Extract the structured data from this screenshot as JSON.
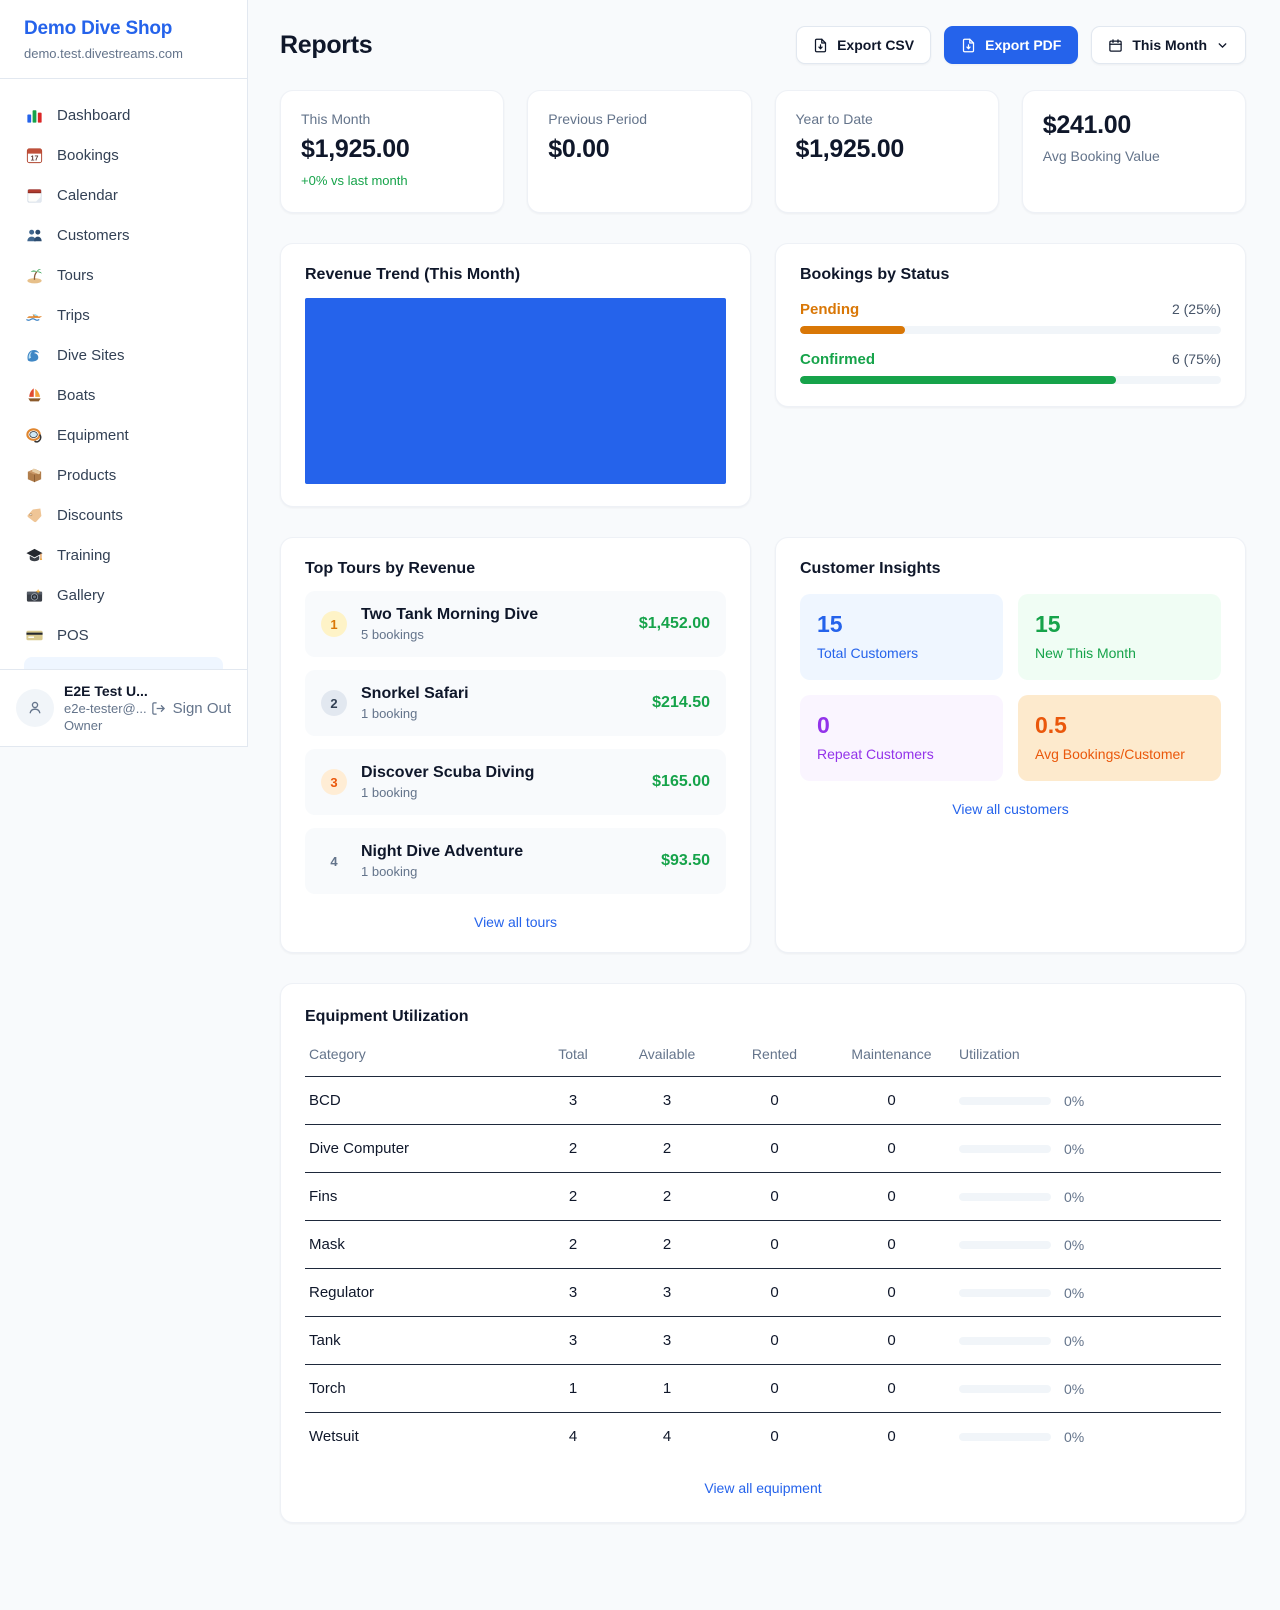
{
  "colors": {
    "accent_blue": "#2563eb",
    "green": "#16a34a",
    "orange_pending": "#d97706",
    "orange_deep": "#ea580c",
    "purple": "#9333ea",
    "text_muted": "#64748b",
    "page_bg": "#f8fafc"
  },
  "sidebar": {
    "title": "Demo Dive Shop",
    "subtitle": "demo.test.divestreams.com",
    "items": [
      {
        "label": "Dashboard",
        "icon": "dashboard-icon"
      },
      {
        "label": "Bookings",
        "icon": "bookings-calendar-icon"
      },
      {
        "label": "Calendar",
        "icon": "calendar-icon"
      },
      {
        "label": "Customers",
        "icon": "customers-icon"
      },
      {
        "label": "Tours",
        "icon": "island-icon"
      },
      {
        "label": "Trips",
        "icon": "speedboat-icon"
      },
      {
        "label": "Dive Sites",
        "icon": "wave-icon"
      },
      {
        "label": "Boats",
        "icon": "sailboat-icon"
      },
      {
        "label": "Equipment",
        "icon": "dive-mask-icon"
      },
      {
        "label": "Products",
        "icon": "package-icon"
      },
      {
        "label": "Discounts",
        "icon": "tag-icon"
      },
      {
        "label": "Training",
        "icon": "graduation-cap-icon"
      },
      {
        "label": "Gallery",
        "icon": "camera-icon"
      },
      {
        "label": "POS",
        "icon": "credit-card-icon"
      }
    ],
    "user": {
      "name": "E2E Test U...",
      "email": "e2e-tester@...",
      "role": "Owner",
      "signout_label": "Sign Out"
    }
  },
  "header": {
    "title": "Reports",
    "export_csv_label": "Export CSV",
    "export_pdf_label": "Export PDF",
    "period_label": "This Month"
  },
  "stats": [
    {
      "label": "This Month",
      "value": "$1,925.00",
      "delta": "+0% vs last month"
    },
    {
      "label": "Previous Period",
      "value": "$0.00"
    },
    {
      "label": "Year to Date",
      "value": "$1,925.00"
    },
    {
      "label": "Avg Booking Value",
      "value": "$241.00"
    }
  ],
  "revenue_trend": {
    "title": "Revenue Trend (This Month)"
  },
  "chart_data": {
    "type": "bar",
    "title": "Revenue Trend (This Month)",
    "note": "single full-width solid bar, no axes or labels visible",
    "series": [
      {
        "name": "Revenue",
        "values": [
          1925.0
        ]
      }
    ],
    "bar_color": "#2563eb"
  },
  "bookings_by_status": {
    "title": "Bookings by Status",
    "rows": [
      {
        "label": "Pending",
        "count_text": "2 (25%)",
        "pct": 25,
        "color": "#d97706"
      },
      {
        "label": "Confirmed",
        "count_text": "6 (75%)",
        "pct": 75,
        "color": "#16a34a"
      }
    ]
  },
  "top_tours": {
    "title": "Top Tours by Revenue",
    "rows": [
      {
        "rank": "1",
        "name": "Two Tank Morning Dive",
        "bookings": "5 bookings",
        "revenue": "$1,452.00"
      },
      {
        "rank": "2",
        "name": "Snorkel Safari",
        "bookings": "1 booking",
        "revenue": "$214.50"
      },
      {
        "rank": "3",
        "name": "Discover Scuba Diving",
        "bookings": "1 booking",
        "revenue": "$165.00"
      },
      {
        "rank": "4",
        "name": "Night Dive Adventure",
        "bookings": "1 booking",
        "revenue": "$93.50"
      }
    ],
    "link": "View all tours"
  },
  "customer_insights": {
    "title": "Customer Insights",
    "tiles": [
      {
        "value": "15",
        "label": "Total Customers"
      },
      {
        "value": "15",
        "label": "New This Month"
      },
      {
        "value": "0",
        "label": "Repeat Customers"
      },
      {
        "value": "0.5",
        "label": "Avg Bookings/Customer"
      }
    ],
    "link": "View all customers"
  },
  "equipment": {
    "title": "Equipment Utilization",
    "headers": [
      "Category",
      "Total",
      "Available",
      "Rented",
      "Maintenance",
      "Utilization"
    ],
    "rows": [
      {
        "category": "BCD",
        "total": "3",
        "available": "3",
        "rented": "0",
        "maintenance": "0",
        "utilization": "0%",
        "utilization_pct": 0
      },
      {
        "category": "Dive Computer",
        "total": "2",
        "available": "2",
        "rented": "0",
        "maintenance": "0",
        "utilization": "0%",
        "utilization_pct": 0
      },
      {
        "category": "Fins",
        "total": "2",
        "available": "2",
        "rented": "0",
        "maintenance": "0",
        "utilization": "0%",
        "utilization_pct": 0
      },
      {
        "category": "Mask",
        "total": "2",
        "available": "2",
        "rented": "0",
        "maintenance": "0",
        "utilization": "0%",
        "utilization_pct": 0
      },
      {
        "category": "Regulator",
        "total": "3",
        "available": "3",
        "rented": "0",
        "maintenance": "0",
        "utilization": "0%",
        "utilization_pct": 0
      },
      {
        "category": "Tank",
        "total": "3",
        "available": "3",
        "rented": "0",
        "maintenance": "0",
        "utilization": "0%",
        "utilization_pct": 0
      },
      {
        "category": "Torch",
        "total": "1",
        "available": "1",
        "rented": "0",
        "maintenance": "0",
        "utilization": "0%",
        "utilization_pct": 0
      },
      {
        "category": "Wetsuit",
        "total": "4",
        "available": "4",
        "rented": "0",
        "maintenance": "0",
        "utilization": "0%",
        "utilization_pct": 0
      }
    ],
    "link": "View all equipment"
  }
}
